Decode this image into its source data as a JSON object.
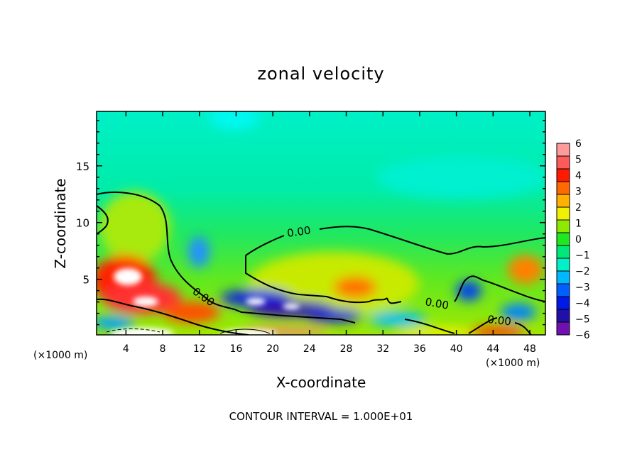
{
  "chart_data": {
    "type": "heatmap",
    "title": "zonal velocity",
    "xlabel": "X-coordinate",
    "ylabel": "Z-coordinate",
    "x_unit_label_left": "(×1000 m)",
    "x_unit_label_right": "(×1000 m)",
    "xlim": [
      0.8,
      49.7
    ],
    "ylim": [
      0.1,
      19.8
    ],
    "x_ticks": [
      4,
      8,
      12,
      16,
      20,
      24,
      28,
      32,
      36,
      40,
      44,
      48
    ],
    "y_ticks": [
      5,
      10,
      15
    ],
    "colorbar": {
      "levels": [
        6,
        5,
        4,
        3,
        2,
        1,
        0,
        -1,
        -2,
        -3,
        -4,
        -5,
        -6
      ],
      "colors": [
        "#ff9a9a",
        "#ff5a5a",
        "#ff1a00",
        "#ff6a00",
        "#ffb000",
        "#f0f000",
        "#8ee800",
        "#20e820",
        "#00e878",
        "#00f0c8",
        "#00b8ff",
        "#0060ff",
        "#0018e8",
        "#2010a8",
        "#7010b0"
      ]
    },
    "contour_labels": [
      "0.00",
      "0.00",
      "0.00",
      "0.00"
    ],
    "footer": "CONTOUR INTERVAL = 1.000E+01"
  }
}
